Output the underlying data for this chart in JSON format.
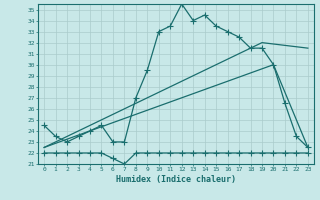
{
  "title": "",
  "xlabel": "Humidex (Indice chaleur)",
  "bg_color": "#c8e8e8",
  "grid_color": "#aacccc",
  "line_color": "#1a6e6e",
  "xlim": [
    -0.5,
    23.5
  ],
  "ylim": [
    21,
    35.5
  ],
  "yticks": [
    21,
    22,
    23,
    24,
    25,
    26,
    27,
    28,
    29,
    30,
    31,
    32,
    33,
    34,
    35
  ],
  "xticks": [
    0,
    1,
    2,
    3,
    4,
    5,
    6,
    7,
    8,
    9,
    10,
    11,
    12,
    13,
    14,
    15,
    16,
    17,
    18,
    19,
    20,
    21,
    22,
    23
  ],
  "line1_x": [
    0,
    1,
    2,
    3,
    4,
    5,
    6,
    7,
    8,
    9,
    10,
    11,
    12,
    13,
    14,
    15,
    16,
    17,
    18,
    19,
    20,
    21,
    22,
    23
  ],
  "line1_y": [
    24.5,
    23.5,
    23.0,
    23.5,
    24.0,
    24.5,
    23.0,
    23.0,
    27.0,
    29.5,
    33.0,
    33.5,
    35.5,
    34.0,
    34.5,
    33.5,
    33.0,
    32.5,
    31.5,
    31.5,
    30.0,
    26.5,
    23.5,
    22.5
  ],
  "line2_x": [
    0,
    1,
    2,
    3,
    4,
    5,
    6,
    7,
    8,
    9,
    10,
    11,
    12,
    13,
    14,
    15,
    16,
    17,
    18,
    19,
    20,
    21,
    22,
    23
  ],
  "line2_y": [
    22.0,
    22.0,
    22.0,
    22.0,
    22.0,
    22.0,
    21.5,
    21.0,
    22.0,
    22.0,
    22.0,
    22.0,
    22.0,
    22.0,
    22.0,
    22.0,
    22.0,
    22.0,
    22.0,
    22.0,
    22.0,
    22.0,
    22.0,
    22.0
  ],
  "line3_x": [
    0,
    19,
    23
  ],
  "line3_y": [
    22.5,
    32.0,
    31.5
  ],
  "line4_x": [
    0,
    20,
    23
  ],
  "line4_y": [
    22.5,
    30.0,
    22.5
  ],
  "marker": "+",
  "markersize": 4,
  "linewidth": 0.9
}
